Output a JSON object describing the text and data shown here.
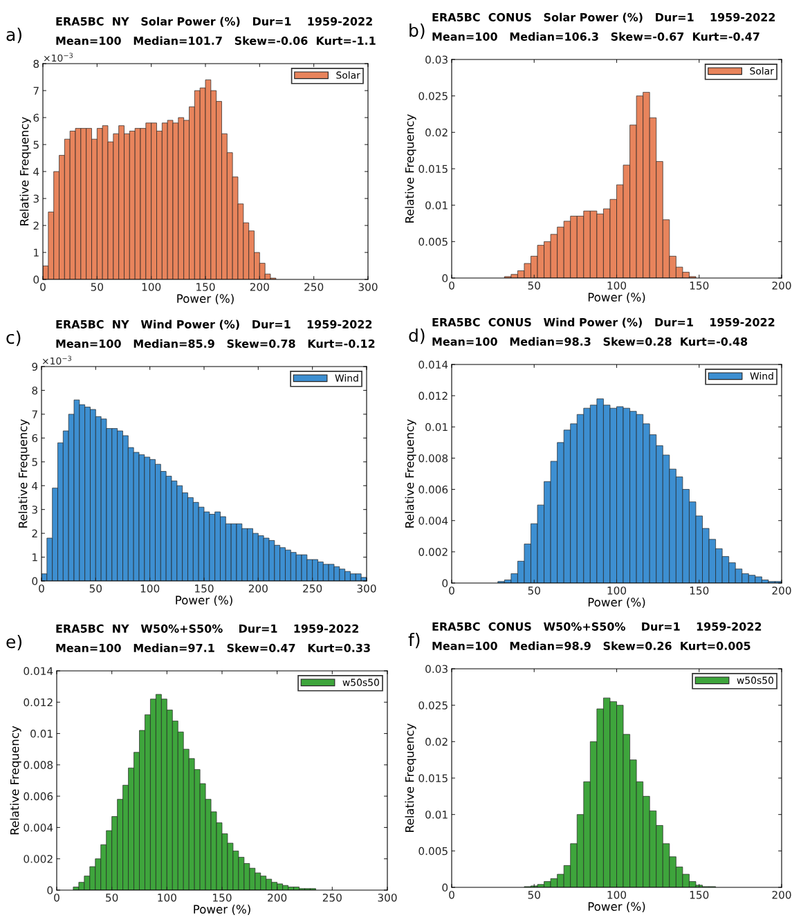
{
  "chart_data": [
    {
      "type": "histogram",
      "title": "ERA5BC  NY   Solar Power (%)   Dur=1    1959-2022",
      "subtitle": "Mean=100   Median=101.7   Skew=-0.06  Kurt=-1.1",
      "xlabel": "Power (%)",
      "ylabel": "Relative Frequency",
      "annotations": [
        "a)",
        "×10$^{−3}$"
      ],
      "legend": "top right",
      "grid": false,
      "xlim": [
        0,
        300
      ],
      "xticks": [
        0,
        50,
        100,
        150,
        200,
        250,
        300
      ],
      "ylim": [
        0,
        8
      ],
      "yticks": [
        0,
        1,
        2,
        3,
        4,
        5,
        6,
        7,
        8
      ],
      "bins": [
        0,
        5,
        10,
        15,
        20,
        25,
        30,
        35,
        40,
        45,
        50,
        55,
        60,
        65,
        70,
        75,
        80,
        85,
        90,
        95,
        100,
        105,
        110,
        115,
        120,
        125,
        130,
        135,
        140,
        145,
        150,
        155,
        160,
        165,
        170,
        175,
        180,
        185,
        190,
        195,
        200,
        205,
        210,
        215,
        220,
        225,
        230,
        235,
        240,
        245,
        250,
        255,
        260,
        265,
        270,
        275,
        280,
        285,
        290,
        295,
        300
      ],
      "series": [
        {
          "name": "Solar",
          "color": "#e8845c",
          "values": [
            0.5,
            2.5,
            4.0,
            4.6,
            5.2,
            5.5,
            5.6,
            5.6,
            5.6,
            5.2,
            5.6,
            5.7,
            5.1,
            5.4,
            5.7,
            5.4,
            5.5,
            5.6,
            5.6,
            5.8,
            5.8,
            5.5,
            5.8,
            5.9,
            5.8,
            6.0,
            5.9,
            6.4,
            7.0,
            7.1,
            7.4,
            7.0,
            6.6,
            5.4,
            4.7,
            3.8,
            2.8,
            2.1,
            1.8,
            1.0,
            0.6,
            0.2,
            0.05,
            0,
            0,
            0,
            0,
            0,
            0,
            0,
            0,
            0,
            0,
            0,
            0,
            0,
            0,
            0,
            0,
            0
          ]
        }
      ]
    },
    {
      "type": "histogram",
      "title": "ERA5BC  CONUS   Solar Power (%)   Dur=1    1959-2022",
      "subtitle": "Mean=100   Median=106.3   Skew=-0.67  Kurt=-0.47",
      "xlabel": "Power (%)",
      "ylabel": "Relative Frequency",
      "annotations": [
        "b)"
      ],
      "legend": "top right",
      "grid": false,
      "xlim": [
        0,
        200
      ],
      "xticks": [
        0,
        50,
        100,
        150,
        200
      ],
      "ylim": [
        0,
        0.03
      ],
      "yticks": [
        0,
        0.005,
        0.01,
        0.015,
        0.02,
        0.025,
        0.03
      ],
      "bins": [
        0,
        4,
        8,
        12,
        16,
        20,
        24,
        28,
        32,
        36,
        40,
        44,
        48,
        52,
        56,
        60,
        64,
        68,
        72,
        76,
        80,
        84,
        88,
        92,
        96,
        100,
        104,
        108,
        112,
        116,
        120,
        124,
        128,
        132,
        136,
        140,
        144,
        148,
        152,
        156,
        160,
        164,
        168,
        172,
        176,
        180,
        184,
        188,
        192,
        196,
        200
      ],
      "series": [
        {
          "name": "Solar",
          "color": "#e8845c",
          "values": [
            0,
            0,
            0,
            0,
            0,
            0,
            0,
            0,
            0.0002,
            0.0005,
            0.001,
            0.002,
            0.003,
            0.0045,
            0.005,
            0.006,
            0.007,
            0.0078,
            0.0085,
            0.0085,
            0.0092,
            0.0092,
            0.0088,
            0.0095,
            0.0108,
            0.0128,
            0.0155,
            0.021,
            0.025,
            0.0255,
            0.022,
            0.016,
            0.008,
            0.003,
            0.0015,
            0.0008,
            0.0002,
            0,
            0,
            0,
            0,
            0,
            0,
            0,
            0,
            0,
            0,
            0,
            0,
            0
          ]
        }
      ]
    },
    {
      "type": "histogram",
      "title": "ERA5BC  NY   Wind Power (%)   Dur=1    1959-2022",
      "subtitle": "Mean=100   Median=85.9   Skew=0.78   Kurt=-0.12",
      "xlabel": "Power (%)",
      "ylabel": "Relative Frequency",
      "annotations": [
        "c)",
        "×10$^{−3}$"
      ],
      "legend": "top right",
      "grid": false,
      "xlim": [
        0,
        300
      ],
      "xticks": [
        0,
        50,
        100,
        150,
        200,
        250,
        300
      ],
      "ylim": [
        0,
        9
      ],
      "yticks": [
        0,
        1,
        2,
        3,
        4,
        5,
        6,
        7,
        8,
        9
      ],
      "bins": [
        0,
        5,
        10,
        15,
        20,
        25,
        30,
        35,
        40,
        45,
        50,
        55,
        60,
        65,
        70,
        75,
        80,
        85,
        90,
        95,
        100,
        105,
        110,
        115,
        120,
        125,
        130,
        135,
        140,
        145,
        150,
        155,
        160,
        165,
        170,
        175,
        180,
        185,
        190,
        195,
        200,
        205,
        210,
        215,
        220,
        225,
        230,
        235,
        240,
        245,
        250,
        255,
        260,
        265,
        270,
        275,
        280,
        285,
        290,
        295,
        300
      ],
      "series": [
        {
          "name": "Wind",
          "color": "#3d8fd1",
          "values": [
            0.3,
            1.8,
            3.9,
            5.8,
            6.3,
            7.0,
            7.6,
            7.4,
            7.3,
            7.2,
            6.9,
            6.8,
            6.4,
            6.4,
            6.3,
            6.1,
            5.6,
            5.4,
            5.3,
            5.2,
            5.1,
            4.9,
            4.6,
            4.4,
            4.2,
            4.0,
            3.7,
            3.5,
            3.3,
            3.1,
            2.9,
            2.8,
            2.9,
            2.7,
            2.4,
            2.4,
            2.4,
            2.2,
            2.2,
            2.0,
            1.9,
            1.8,
            1.7,
            1.5,
            1.4,
            1.3,
            1.2,
            1.1,
            1.1,
            0.9,
            0.9,
            0.8,
            0.7,
            0.7,
            0.6,
            0.5,
            0.4,
            0.3,
            0.3,
            0.15
          ]
        }
      ]
    },
    {
      "type": "histogram",
      "title": "ERA5BC  CONUS   Wind Power (%)   Dur=1    1959-2022",
      "subtitle": "Mean=100   Median=98.3   Skew=0.28  Kurt=-0.48",
      "xlabel": "Power (%)",
      "ylabel": "Relative Frequency",
      "annotations": [
        "d)"
      ],
      "legend": "top right",
      "grid": false,
      "xlim": [
        0,
        200
      ],
      "xticks": [
        0,
        50,
        100,
        150,
        200
      ],
      "ylim": [
        0,
        0.014
      ],
      "yticks": [
        0,
        0.002,
        0.004,
        0.006,
        0.008,
        0.01,
        0.012,
        0.014
      ],
      "bins": [
        0,
        4,
        8,
        12,
        16,
        20,
        24,
        28,
        32,
        36,
        40,
        44,
        48,
        52,
        56,
        60,
        64,
        68,
        72,
        76,
        80,
        84,
        88,
        92,
        96,
        100,
        104,
        108,
        112,
        116,
        120,
        124,
        128,
        132,
        136,
        140,
        144,
        148,
        152,
        156,
        160,
        164,
        168,
        172,
        176,
        180,
        184,
        188,
        192,
        196,
        200
      ],
      "series": [
        {
          "name": "Wind",
          "color": "#3d8fd1",
          "values": [
            0,
            0,
            0,
            0,
            0,
            0,
            0,
            0.0001,
            0.0002,
            0.0006,
            0.0014,
            0.0025,
            0.0038,
            0.005,
            0.0065,
            0.0078,
            0.009,
            0.0098,
            0.0102,
            0.0108,
            0.0112,
            0.0114,
            0.0118,
            0.0114,
            0.0112,
            0.0113,
            0.0112,
            0.011,
            0.0108,
            0.0102,
            0.0095,
            0.0088,
            0.0082,
            0.0073,
            0.0068,
            0.006,
            0.0052,
            0.0043,
            0.0035,
            0.0028,
            0.0022,
            0.0017,
            0.0013,
            0.0009,
            0.0006,
            0.0005,
            0.0004,
            0.0002,
            0.0001,
            0.0001
          ]
        }
      ]
    },
    {
      "type": "histogram",
      "title": "ERA5BC  NY   W50%+S50%    Dur=1    1959-2022",
      "subtitle": "Mean=100   Median=97.1   Skew=0.47   Kurt=0.33",
      "xlabel": "Power (%)",
      "ylabel": "Relative Frequency",
      "annotations": [
        "e)"
      ],
      "legend": "top right",
      "grid": false,
      "xlim": [
        0,
        300
      ],
      "xticks": [
        0,
        50,
        100,
        150,
        200,
        250,
        300
      ],
      "ylim": [
        0,
        0.014
      ],
      "yticks": [
        0,
        0.002,
        0.004,
        0.006,
        0.008,
        0.01,
        0.012,
        0.014
      ],
      "bins": [
        0,
        5,
        10,
        15,
        20,
        25,
        30,
        35,
        40,
        45,
        50,
        55,
        60,
        65,
        70,
        75,
        80,
        85,
        90,
        95,
        100,
        105,
        110,
        115,
        120,
        125,
        130,
        135,
        140,
        145,
        150,
        155,
        160,
        165,
        170,
        175,
        180,
        185,
        190,
        195,
        200,
        205,
        210,
        215,
        220,
        225,
        230,
        235,
        240,
        245,
        250,
        255,
        260,
        265,
        270,
        275,
        280,
        285,
        290,
        295,
        300
      ],
      "series": [
        {
          "name": "w50s50",
          "color": "#3ea53c",
          "values": [
            0,
            0,
            0,
            0.0002,
            0.0005,
            0.0009,
            0.0015,
            0.002,
            0.0029,
            0.0038,
            0.0047,
            0.0058,
            0.0067,
            0.0078,
            0.0088,
            0.0102,
            0.0112,
            0.0122,
            0.0125,
            0.0122,
            0.0115,
            0.0108,
            0.0101,
            0.009,
            0.0084,
            0.0077,
            0.0068,
            0.0058,
            0.005,
            0.0043,
            0.0036,
            0.003,
            0.0025,
            0.0021,
            0.0017,
            0.0014,
            0.0011,
            0.0009,
            0.0007,
            0.0005,
            0.0004,
            0.0003,
            0.0002,
            0.0002,
            0.0001,
            0.0001,
            0.0001,
            0,
            0,
            0,
            0,
            0,
            0,
            0,
            0,
            0,
            0,
            0,
            0,
            0
          ]
        }
      ]
    },
    {
      "type": "histogram",
      "title": "ERA5BC  CONUS   W50%+S50%    Dur=1    1959-2022",
      "subtitle": "Mean=100   Median=98.9   Skew=0.26  Kurt=0.005",
      "xlabel": "Power (%)",
      "ylabel": "Relative Frequency",
      "annotations": [
        "f)"
      ],
      "legend": "top right",
      "grid": false,
      "xlim": [
        0,
        200
      ],
      "xticks": [
        0,
        50,
        100,
        150,
        200
      ],
      "ylim": [
        0,
        0.03
      ],
      "yticks": [
        0,
        0.005,
        0.01,
        0.015,
        0.02,
        0.025,
        0.03
      ],
      "bins": [
        0,
        4,
        8,
        12,
        16,
        20,
        24,
        28,
        32,
        36,
        40,
        44,
        48,
        52,
        56,
        60,
        64,
        68,
        72,
        76,
        80,
        84,
        88,
        92,
        96,
        100,
        104,
        108,
        112,
        116,
        120,
        124,
        128,
        132,
        136,
        140,
        144,
        148,
        152,
        156,
        160,
        164,
        168,
        172,
        176,
        180,
        184,
        188,
        192,
        196,
        200
      ],
      "series": [
        {
          "name": "w50s50",
          "color": "#3ea53c",
          "values": [
            0,
            0,
            0,
            0,
            0,
            0,
            0,
            0,
            0,
            0,
            0,
            0.0001,
            0.0002,
            0.0004,
            0.0008,
            0.0012,
            0.0018,
            0.003,
            0.006,
            0.01,
            0.0145,
            0.02,
            0.0245,
            0.026,
            0.0255,
            0.025,
            0.021,
            0.0175,
            0.0145,
            0.0125,
            0.0105,
            0.0085,
            0.006,
            0.0042,
            0.0028,
            0.0018,
            0.0008,
            0.0003,
            0.0001,
            0.0001,
            0,
            0,
            0,
            0,
            0,
            0,
            0,
            0,
            0,
            0
          ]
        }
      ]
    }
  ]
}
